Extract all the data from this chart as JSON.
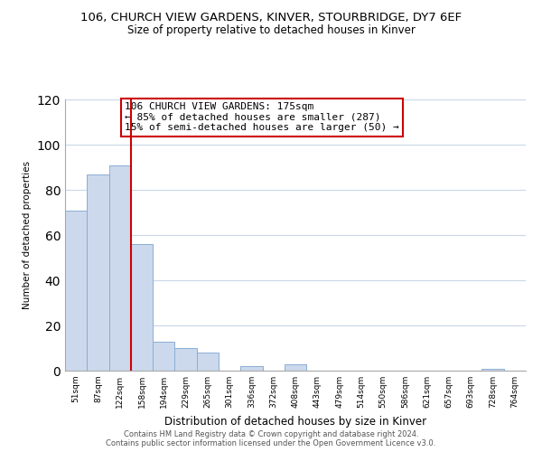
{
  "title": "106, CHURCH VIEW GARDENS, KINVER, STOURBRIDGE, DY7 6EF",
  "subtitle": "Size of property relative to detached houses in Kinver",
  "xlabel": "Distribution of detached houses by size in Kinver",
  "ylabel": "Number of detached properties",
  "bar_labels": [
    "51sqm",
    "87sqm",
    "122sqm",
    "158sqm",
    "194sqm",
    "229sqm",
    "265sqm",
    "301sqm",
    "336sqm",
    "372sqm",
    "408sqm",
    "443sqm",
    "479sqm",
    "514sqm",
    "550sqm",
    "586sqm",
    "621sqm",
    "657sqm",
    "693sqm",
    "728sqm",
    "764sqm"
  ],
  "bar_values": [
    71,
    87,
    91,
    56,
    13,
    10,
    8,
    0,
    2,
    0,
    3,
    0,
    0,
    0,
    0,
    0,
    0,
    0,
    0,
    1,
    0
  ],
  "bar_color": "#ccd9ec",
  "bar_edge_color": "#8aadd4",
  "vline_x": 3.0,
  "vline_color": "#cc0000",
  "annotation_lines": [
    "106 CHURCH VIEW GARDENS: 175sqm",
    "← 85% of detached houses are smaller (287)",
    "15% of semi-detached houses are larger (50) →"
  ],
  "ylim": [
    0,
    120
  ],
  "yticks": [
    0,
    20,
    40,
    60,
    80,
    100,
    120
  ],
  "footer_line1": "Contains HM Land Registry data © Crown copyright and database right 2024.",
  "footer_line2": "Contains public sector information licensed under the Open Government Licence v3.0.",
  "bg_color": "#ffffff",
  "grid_color": "#c8d8e8"
}
